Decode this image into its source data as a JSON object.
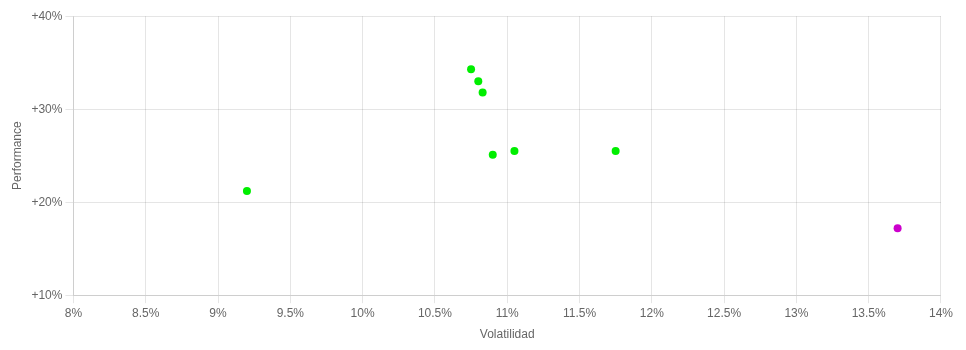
{
  "chart_data": {
    "type": "scatter",
    "xlabel": "Volatilidad",
    "ylabel": "Performance",
    "series": [
      {
        "color": "#00ee00",
        "x": [
          0.092,
          0.1075,
          0.108,
          0.1083,
          0.109,
          0.1105,
          0.1175
        ],
        "values": [
          0.212,
          0.343,
          0.33,
          0.318,
          0.251,
          0.255,
          0.255
        ]
      },
      {
        "color": "#cc00cc",
        "x": [
          0.137
        ],
        "values": [
          0.172
        ]
      }
    ],
    "xlim": [
      0.08,
      0.14
    ],
    "ylim": [
      0.1,
      0.4
    ],
    "xticks": [
      {
        "value": 0.08,
        "label": "8%"
      },
      {
        "value": 0.085,
        "label": "8.5%"
      },
      {
        "value": 0.09,
        "label": "9%"
      },
      {
        "value": 0.095,
        "label": "9.5%"
      },
      {
        "value": 0.1,
        "label": "10%"
      },
      {
        "value": 0.105,
        "label": "10.5%"
      },
      {
        "value": 0.11,
        "label": "11%"
      },
      {
        "value": 0.115,
        "label": "11.5%"
      },
      {
        "value": 0.12,
        "label": "12%"
      },
      {
        "value": 0.125,
        "label": "12.5%"
      },
      {
        "value": 0.13,
        "label": "13%"
      },
      {
        "value": 0.135,
        "label": "13.5%"
      },
      {
        "value": 0.14,
        "label": "14%"
      }
    ],
    "yticks": [
      {
        "value": 0.1,
        "label": "+10%"
      },
      {
        "value": 0.2,
        "label": "+20%"
      },
      {
        "value": 0.3,
        "label": "+30%"
      },
      {
        "value": 0.4,
        "label": "+40%"
      }
    ],
    "grid": true
  }
}
